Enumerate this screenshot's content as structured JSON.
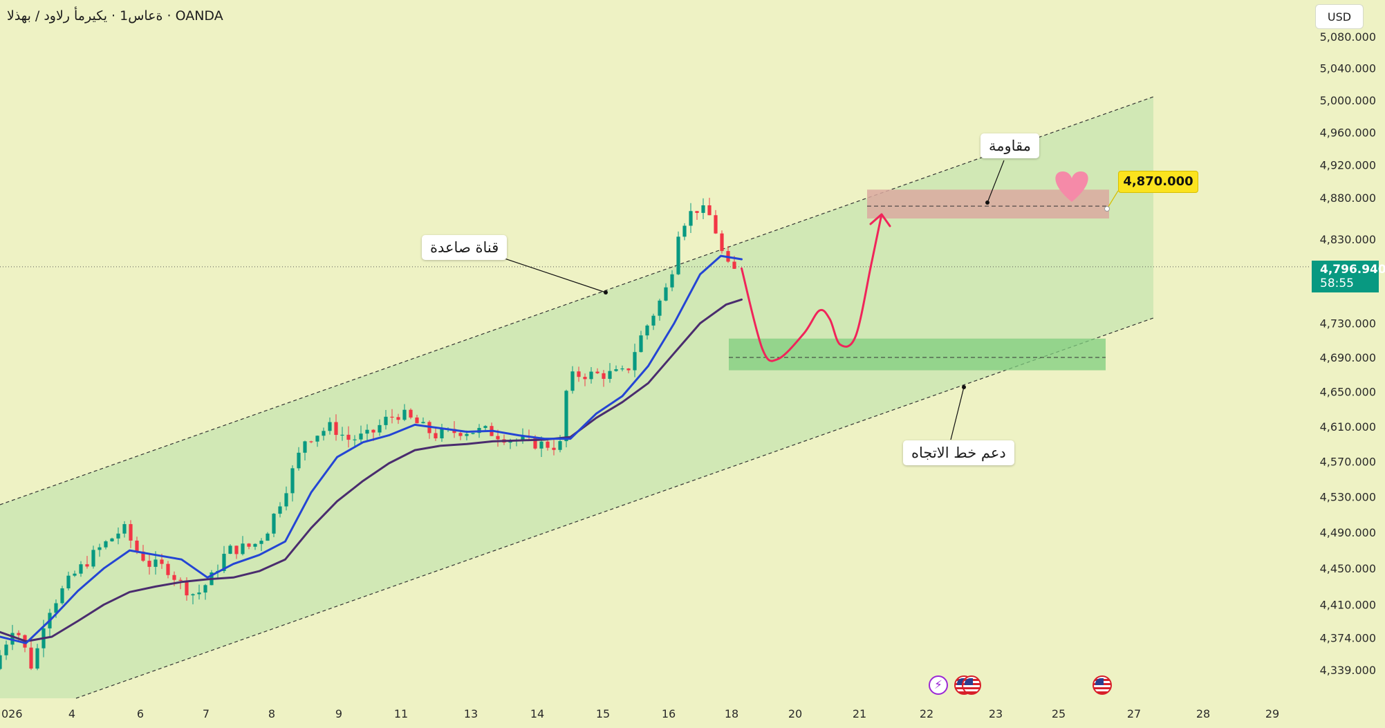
{
  "header": {
    "title": "ةعاس1 · يكيرمأ رلاود / بهذلا · OANDA"
  },
  "toolbar": {
    "currency_label": "USD"
  },
  "price_tag": {
    "price": "4,796.940",
    "countdown": "58:55"
  },
  "annotations": {
    "channel_label": "قناة صاعدة",
    "resistance_label": "مقاومة",
    "support_label": "دعم خط الاتجاه",
    "target_label": "4,870.000"
  },
  "events": [
    {
      "icon": "lightning-icon"
    },
    {
      "icon": "us-flag-icon"
    },
    {
      "icon": "us-flag-icon"
    },
    {
      "icon": "us-flag-icon"
    }
  ],
  "colors": {
    "background": "#eef2c4",
    "channel_fill": "#9bd69b",
    "candle_up": "#089981",
    "candle_down": "#f23645",
    "ma_fast": "#2445d4",
    "ma_slow": "#4a2c6e",
    "projection": "#f0245a",
    "resistance_zone": "#dba9a0",
    "support_zone": "#7fce7f",
    "target_label_bg": "#fbe31e",
    "price_tag_bg": "#089981"
  },
  "chart_data": {
    "type": "candlestick",
    "y_scale": "log",
    "ylim": [
      4320,
      5085
    ],
    "yticks": [
      "5,080.000",
      "5,040.000",
      "5,000.000",
      "4,960.000",
      "4,920.000",
      "4,880.000",
      "4,830.000",
      "4,730.000",
      "4,690.000",
      "4,650.000",
      "4,610.000",
      "4,570.000",
      "4,530.000",
      "4,490.000",
      "4,450.000",
      "4,410.000",
      "4,374.000",
      "4,339.000"
    ],
    "xticks": [
      "026",
      "4",
      "6",
      "7",
      "8",
      "9",
      "11",
      "13",
      "14",
      "15",
      "16",
      "18",
      "20",
      "21",
      "22",
      "23",
      "25",
      "27",
      "28",
      "29"
    ],
    "current_price": 4796.94,
    "target_price": 4870.0,
    "support_price": 4690.0,
    "resistance_zone": [
      4855,
      4890
    ],
    "support_zone": [
      4675,
      4712
    ],
    "price_path": [
      {
        "t": 0,
        "p": 4340
      },
      {
        "t": 0.8,
        "p": 4390
      },
      {
        "t": 1,
        "p": 4375
      },
      {
        "t": 1.5,
        "p": 4340
      },
      {
        "t": 2,
        "p": 4400
      },
      {
        "t": 3,
        "p": 4440
      },
      {
        "t": 4,
        "p": 4470
      },
      {
        "t": 5,
        "p": 4495
      },
      {
        "t": 5.5,
        "p": 4470
      },
      {
        "t": 6,
        "p": 4455
      },
      {
        "t": 6.7,
        "p": 4450
      },
      {
        "t": 7.3,
        "p": 4430
      },
      {
        "t": 7.8,
        "p": 4420
      },
      {
        "t": 8.4,
        "p": 4440
      },
      {
        "t": 9,
        "p": 4470
      },
      {
        "t": 10,
        "p": 4475
      },
      {
        "t": 10.5,
        "p": 4490
      },
      {
        "t": 11.2,
        "p": 4535
      },
      {
        "t": 12,
        "p": 4595
      },
      {
        "t": 13,
        "p": 4610
      },
      {
        "t": 13.7,
        "p": 4595
      },
      {
        "t": 14.5,
        "p": 4600
      },
      {
        "t": 15.2,
        "p": 4620
      },
      {
        "t": 15.7,
        "p": 4625
      },
      {
        "t": 16.5,
        "p": 4610
      },
      {
        "t": 17,
        "p": 4600
      },
      {
        "t": 18,
        "p": 4605
      },
      {
        "t": 19,
        "p": 4605
      },
      {
        "t": 20,
        "p": 4595
      },
      {
        "t": 21,
        "p": 4590
      },
      {
        "t": 21.6,
        "p": 4588
      },
      {
        "t": 22,
        "p": 4590
      },
      {
        "t": 22.1,
        "p": 4665
      },
      {
        "t": 22.6,
        "p": 4670
      },
      {
        "t": 23.5,
        "p": 4670
      },
      {
        "t": 24.4,
        "p": 4672
      },
      {
        "t": 24.8,
        "p": 4705
      },
      {
        "t": 25.5,
        "p": 4745
      },
      {
        "t": 26,
        "p": 4775
      },
      {
        "t": 26.2,
        "p": 4800
      },
      {
        "t": 26.4,
        "p": 4840
      },
      {
        "t": 26.8,
        "p": 4860
      },
      {
        "t": 27.2,
        "p": 4868
      },
      {
        "t": 27.6,
        "p": 4858
      },
      {
        "t": 27.9,
        "p": 4835
      },
      {
        "t": 28.2,
        "p": 4800
      },
      {
        "t": 28.5,
        "p": 4792
      }
    ],
    "ma_fast": [
      {
        "t": 0,
        "p": 4375
      },
      {
        "t": 1,
        "p": 4368
      },
      {
        "t": 2,
        "p": 4395
      },
      {
        "t": 3,
        "p": 4425
      },
      {
        "t": 4,
        "p": 4450
      },
      {
        "t": 5,
        "p": 4470
      },
      {
        "t": 6,
        "p": 4465
      },
      {
        "t": 7,
        "p": 4460
      },
      {
        "t": 8,
        "p": 4440
      },
      {
        "t": 9,
        "p": 4455
      },
      {
        "t": 10,
        "p": 4465
      },
      {
        "t": 11,
        "p": 4480
      },
      {
        "t": 12,
        "p": 4535
      },
      {
        "t": 13,
        "p": 4575
      },
      {
        "t": 14,
        "p": 4592
      },
      {
        "t": 15,
        "p": 4600
      },
      {
        "t": 16,
        "p": 4612
      },
      {
        "t": 17,
        "p": 4608
      },
      {
        "t": 18,
        "p": 4604
      },
      {
        "t": 19,
        "p": 4605
      },
      {
        "t": 20,
        "p": 4600
      },
      {
        "t": 21,
        "p": 4596
      },
      {
        "t": 22,
        "p": 4596
      },
      {
        "t": 23,
        "p": 4625
      },
      {
        "t": 24,
        "p": 4645
      },
      {
        "t": 25,
        "p": 4680
      },
      {
        "t": 26,
        "p": 4730
      },
      {
        "t": 27,
        "p": 4788
      },
      {
        "t": 27.8,
        "p": 4810
      },
      {
        "t": 28.6,
        "p": 4806
      }
    ],
    "ma_slow": [
      {
        "t": 0,
        "p": 4380
      },
      {
        "t": 1,
        "p": 4370
      },
      {
        "t": 2,
        "p": 4375
      },
      {
        "t": 3,
        "p": 4392
      },
      {
        "t": 4,
        "p": 4410
      },
      {
        "t": 5,
        "p": 4424
      },
      {
        "t": 6,
        "p": 4430
      },
      {
        "t": 7,
        "p": 4435
      },
      {
        "t": 8,
        "p": 4438
      },
      {
        "t": 9,
        "p": 4440
      },
      {
        "t": 10,
        "p": 4447
      },
      {
        "t": 11,
        "p": 4460
      },
      {
        "t": 12,
        "p": 4495
      },
      {
        "t": 13,
        "p": 4525
      },
      {
        "t": 14,
        "p": 4548
      },
      {
        "t": 15,
        "p": 4568
      },
      {
        "t": 16,
        "p": 4583
      },
      {
        "t": 17,
        "p": 4588
      },
      {
        "t": 18,
        "p": 4590
      },
      {
        "t": 19,
        "p": 4593
      },
      {
        "t": 20,
        "p": 4594
      },
      {
        "t": 21,
        "p": 4595
      },
      {
        "t": 22,
        "p": 4598
      },
      {
        "t": 23,
        "p": 4620
      },
      {
        "t": 24,
        "p": 4638
      },
      {
        "t": 25,
        "p": 4660
      },
      {
        "t": 26,
        "p": 4695
      },
      {
        "t": 27,
        "p": 4730
      },
      {
        "t": 28,
        "p": 4752
      },
      {
        "t": 28.6,
        "p": 4758
      }
    ],
    "projection": [
      {
        "t": 28.6,
        "p": 4795
      },
      {
        "t": 29.4,
        "p": 4700
      },
      {
        "t": 30,
        "p": 4688
      },
      {
        "t": 31,
        "p": 4718
      },
      {
        "t": 31.6,
        "p": 4745
      },
      {
        "t": 32,
        "p": 4735
      },
      {
        "t": 32.4,
        "p": 4705
      },
      {
        "t": 33,
        "p": 4715
      },
      {
        "t": 33.6,
        "p": 4800
      },
      {
        "t": 34,
        "p": 4860
      }
    ]
  }
}
